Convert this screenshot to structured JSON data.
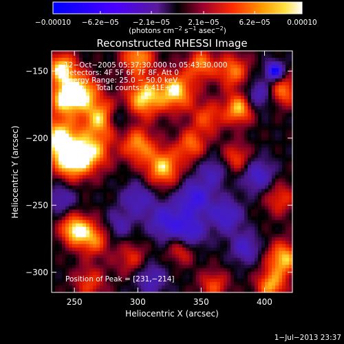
{
  "chart_data": {
    "type": "heatmap",
    "title": "Reconstructed RHESSI Image",
    "xlabel": "Heliocentric X (arcsec)",
    "ylabel": "Heliocentric Y (arcsec)",
    "xlim": [
      232,
      422
    ],
    "ylim": [
      -315,
      -135
    ],
    "x_ticks": [
      250,
      300,
      350,
      400
    ],
    "y_ticks": [
      -150,
      -200,
      -250,
      -300
    ],
    "x_tick_labels": [
      "250",
      "300",
      "350",
      "400"
    ],
    "y_tick_labels": [
      "−150",
      "−200",
      "−250",
      "−300"
    ],
    "colorbar": {
      "min": -0.0001,
      "max": 0.0001,
      "tick_values": [
        -0.0001,
        -6.2e-05,
        -2.1e-05,
        2.1e-05,
        6.2e-05,
        0.0001
      ],
      "tick_labels": [
        "−0.00010",
        "−6.2e−05",
        "−2.1e−05",
        "2.1e−05",
        "6.2e−05",
        "0.00010"
      ],
      "units_prefix": "(photons cm",
      "units_exp1": "−2",
      "units_mid": " s",
      "units_exp2": "−1",
      "units_mid2": " asec",
      "units_exp3": "−2",
      "units_suffix": ")"
    },
    "annotations": [
      "12−Oct−2005 05:37:30.000 to 05:43:30.000",
      "Detectors: 4F 5F 6F 7F 8F, Att 0",
      "Energy Range: 25.0 − 50.0 keV",
      "Clean     Total counts: 6.41E+03"
    ],
    "peak_label": "Position of Peak = [231,−214]",
    "timestamp": "1−Jul−2013 23:37",
    "grid": false,
    "sources": [
      {
        "x": 240,
        "y": -148,
        "amp": 1.0,
        "s": 8
      },
      {
        "x": 243,
        "y": -170,
        "amp": 1.0,
        "s": 9
      },
      {
        "x": 238,
        "y": -200,
        "amp": 1.0,
        "s": 11
      },
      {
        "x": 248,
        "y": -217,
        "amp": 1.0,
        "s": 10
      },
      {
        "x": 257,
        "y": -165,
        "amp": 0.8,
        "s": 9
      },
      {
        "x": 270,
        "y": -185,
        "amp": 0.85,
        "s": 10
      },
      {
        "x": 265,
        "y": -210,
        "amp": 0.75,
        "s": 10
      },
      {
        "x": 250,
        "y": -268,
        "amp": 0.95,
        "s": 8
      },
      {
        "x": 300,
        "y": -140,
        "amp": 0.8,
        "s": 9
      },
      {
        "x": 305,
        "y": -170,
        "amp": 0.95,
        "s": 10
      },
      {
        "x": 330,
        "y": -165,
        "amp": 0.95,
        "s": 10
      },
      {
        "x": 350,
        "y": -145,
        "amp": 0.7,
        "s": 8
      },
      {
        "x": 300,
        "y": -205,
        "amp": 0.75,
        "s": 9
      },
      {
        "x": 320,
        "y": -222,
        "amp": 0.9,
        "s": 10
      },
      {
        "x": 342,
        "y": -205,
        "amp": 0.65,
        "s": 8
      },
      {
        "x": 355,
        "y": -185,
        "amp": 0.55,
        "s": 9
      },
      {
        "x": 375,
        "y": -150,
        "amp": 0.7,
        "s": 9
      },
      {
        "x": 380,
        "y": -178,
        "amp": 0.9,
        "s": 8
      },
      {
        "x": 378,
        "y": -215,
        "amp": 0.55,
        "s": 8
      },
      {
        "x": 415,
        "y": -165,
        "amp": 0.7,
        "s": 8
      },
      {
        "x": 412,
        "y": -245,
        "amp": 0.5,
        "s": 9
      },
      {
        "x": 415,
        "y": -290,
        "amp": 0.9,
        "s": 9
      },
      {
        "x": 405,
        "y": -310,
        "amp": 0.8,
        "s": 8
      },
      {
        "x": 265,
        "y": -275,
        "amp": 0.7,
        "s": 9
      },
      {
        "x": 262,
        "y": -308,
        "amp": 0.5,
        "s": 9
      },
      {
        "x": 295,
        "y": -290,
        "amp": 0.45,
        "s": 9
      },
      {
        "x": 335,
        "y": -282,
        "amp": 0.65,
        "s": 8
      },
      {
        "x": 360,
        "y": -310,
        "amp": 0.55,
        "s": 8
      },
      {
        "x": 408,
        "y": -150,
        "amp": -1.0,
        "s": 5
      },
      {
        "x": 395,
        "y": -168,
        "amp": -0.55,
        "s": 8
      },
      {
        "x": 395,
        "y": -228,
        "amp": -0.6,
        "s": 9
      },
      {
        "x": 345,
        "y": -245,
        "amp": -0.7,
        "s": 10
      },
      {
        "x": 340,
        "y": -272,
        "amp": -0.75,
        "s": 9
      },
      {
        "x": 322,
        "y": -262,
        "amp": -0.6,
        "s": 10
      },
      {
        "x": 300,
        "y": -245,
        "amp": -0.5,
        "s": 9
      },
      {
        "x": 370,
        "y": -258,
        "amp": -0.6,
        "s": 9
      },
      {
        "x": 385,
        "y": -282,
        "amp": -0.55,
        "s": 8
      },
      {
        "x": 310,
        "y": -305,
        "amp": -0.5,
        "s": 9
      },
      {
        "x": 360,
        "y": -225,
        "amp": -0.45,
        "s": 8
      },
      {
        "x": 240,
        "y": -245,
        "amp": -0.45,
        "s": 8
      },
      {
        "x": 285,
        "y": -185,
        "amp": -0.45,
        "s": 6
      },
      {
        "x": 285,
        "y": -265,
        "amp": -0.4,
        "s": 8
      }
    ]
  }
}
